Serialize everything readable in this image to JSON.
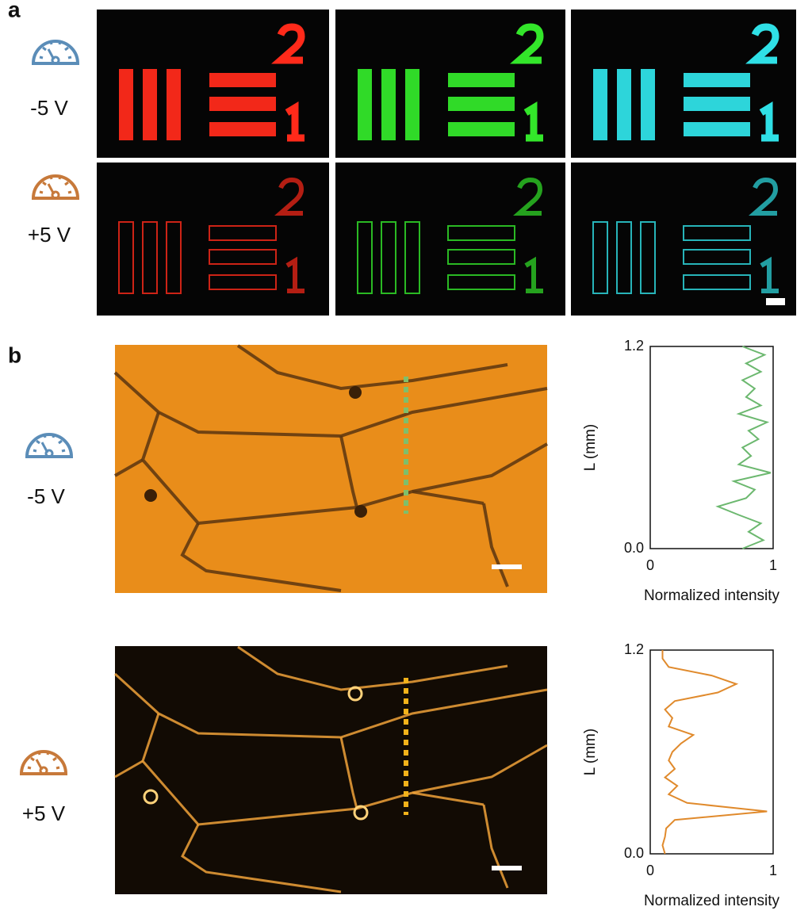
{
  "panel_a": {
    "label": "a",
    "rows": [
      {
        "voltage": "-5 V"
      },
      {
        "voltage": "+5 V"
      }
    ]
  },
  "panel_b": {
    "label": "b",
    "rows": [
      {
        "voltage": "-5 V"
      },
      {
        "voltage": "+5 V"
      }
    ]
  },
  "chart_data": [
    {
      "type": "line",
      "xlabel": "Normalized intensity",
      "ylabel": "L (mm)",
      "color": "#6cb86f",
      "x": [
        0.75,
        0.92,
        0.8,
        0.9,
        0.72,
        0.55,
        0.78,
        0.85,
        0.68,
        0.98,
        0.72,
        0.82,
        0.75,
        0.88,
        0.8,
        0.95,
        0.72,
        0.9,
        0.78,
        0.85,
        0.75,
        0.9,
        0.78,
        0.93,
        0.75
      ],
      "values": [
        0,
        0.05,
        0.1,
        0.15,
        0.2,
        0.25,
        0.3,
        0.35,
        0.4,
        0.45,
        0.5,
        0.55,
        0.6,
        0.65,
        0.7,
        0.75,
        0.8,
        0.85,
        0.9,
        0.95,
        1.0,
        1.05,
        1.1,
        1.15,
        1.2
      ],
      "xlim": [
        0,
        1
      ],
      "ylim": [
        0,
        1.2
      ],
      "xticks": [
        0,
        1
      ],
      "yticks": [
        {
          "value": 0,
          "label": "0.0"
        },
        1.2
      ]
    },
    {
      "type": "line",
      "xlabel": "Normalized intensity",
      "ylabel": "L (mm)",
      "color": "#e08a2c",
      "x": [
        0.12,
        0.1,
        0.12,
        0.13,
        0.2,
        0.95,
        0.3,
        0.15,
        0.22,
        0.12,
        0.2,
        0.15,
        0.18,
        0.25,
        0.35,
        0.15,
        0.18,
        0.12,
        0.2,
        0.55,
        0.7,
        0.5,
        0.15,
        0.1,
        0.1
      ],
      "values": [
        0,
        0.05,
        0.1,
        0.15,
        0.2,
        0.25,
        0.3,
        0.35,
        0.4,
        0.45,
        0.5,
        0.55,
        0.6,
        0.65,
        0.7,
        0.75,
        0.8,
        0.85,
        0.9,
        0.95,
        1.0,
        1.05,
        1.1,
        1.15,
        1.2
      ],
      "xlim": [
        0,
        1
      ],
      "ylim": [
        0,
        1.2
      ],
      "xticks": [
        0,
        1
      ],
      "yticks": [
        {
          "value": 0,
          "label": "0.0"
        },
        1.2
      ]
    }
  ]
}
